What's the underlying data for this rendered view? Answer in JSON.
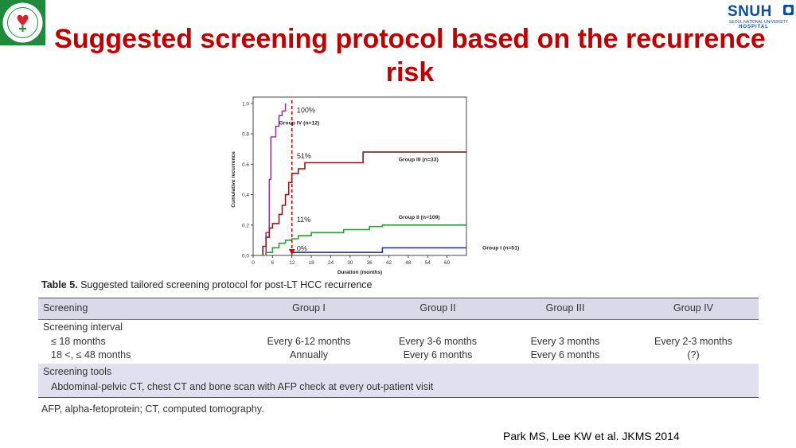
{
  "title": "Suggested screening protocol based on the recurrence risk",
  "logo_right": {
    "name": "SNUH",
    "subtitle": "SEOUL NATIONAL UNIVERSITY",
    "hospital": "HOSPITAL"
  },
  "chart_data": {
    "type": "line",
    "xlabel": "Duration (months)",
    "ylabel": "Cumulative recurrence",
    "xlim": [
      0,
      66
    ],
    "ylim": [
      0,
      1.0
    ],
    "x_ticks": [
      "0",
      "6",
      "12",
      "18",
      "24",
      "30",
      "36",
      "42",
      "48",
      "54",
      "60"
    ],
    "y_ticks": [
      "0.0",
      "0.2",
      "0.4",
      "0.6",
      "0.8",
      "1.0"
    ],
    "cutoff_x": 12,
    "series": [
      {
        "name": "Group IV (n=12)",
        "color": "#8e3fa6",
        "points": [
          [
            4,
            0
          ],
          [
            4,
            0.15
          ],
          [
            5,
            0.15
          ],
          [
            5,
            0.5
          ],
          [
            5.5,
            0.5
          ],
          [
            5.5,
            0.78
          ],
          [
            7,
            0.78
          ],
          [
            7,
            0.85
          ],
          [
            8,
            0.85
          ],
          [
            8,
            0.92
          ],
          [
            9,
            0.92
          ],
          [
            9,
            0.95
          ],
          [
            10,
            0.95
          ],
          [
            10,
            1.0
          ]
        ]
      },
      {
        "name": "Group III (n=33)",
        "color": "#8b1a1a",
        "points": [
          [
            3,
            0
          ],
          [
            3,
            0.06
          ],
          [
            4,
            0.06
          ],
          [
            4,
            0.12
          ],
          [
            5,
            0.12
          ],
          [
            5,
            0.18
          ],
          [
            6,
            0.18
          ],
          [
            6,
            0.21
          ],
          [
            8,
            0.21
          ],
          [
            8,
            0.27
          ],
          [
            9,
            0.27
          ],
          [
            9,
            0.33
          ],
          [
            10,
            0.33
          ],
          [
            10,
            0.4
          ],
          [
            11,
            0.4
          ],
          [
            11,
            0.48
          ],
          [
            12,
            0.48
          ],
          [
            12,
            0.54
          ],
          [
            14,
            0.54
          ],
          [
            14,
            0.57
          ],
          [
            16,
            0.57
          ],
          [
            16,
            0.61
          ],
          [
            34,
            0.61
          ],
          [
            34,
            0.68
          ],
          [
            66,
            0.68
          ]
        ]
      },
      {
        "name": "Group II (n=109)",
        "color": "#2e9e3a",
        "points": [
          [
            4,
            0
          ],
          [
            4,
            0.02
          ],
          [
            6,
            0.02
          ],
          [
            6,
            0.05
          ],
          [
            8,
            0.05
          ],
          [
            8,
            0.08
          ],
          [
            10,
            0.08
          ],
          [
            10,
            0.1
          ],
          [
            12,
            0.1
          ],
          [
            12,
            0.11
          ],
          [
            14,
            0.11
          ],
          [
            14,
            0.13
          ],
          [
            18,
            0.13
          ],
          [
            18,
            0.15
          ],
          [
            28,
            0.15
          ],
          [
            28,
            0.17
          ],
          [
            36,
            0.17
          ],
          [
            36,
            0.19
          ],
          [
            40,
            0.19
          ],
          [
            40,
            0.2
          ],
          [
            66,
            0.2
          ]
        ]
      },
      {
        "name": "Group I (n=51)",
        "color": "#1f3fa0",
        "points": [
          [
            12,
            0
          ],
          [
            12,
            0.02
          ],
          [
            40,
            0.02
          ],
          [
            40,
            0.05
          ],
          [
            66,
            0.05
          ]
        ]
      }
    ],
    "annotations": [
      "100%",
      "51%",
      "11%",
      "0%"
    ]
  },
  "table": {
    "caption_bold": "Table 5.",
    "caption_rest": " Suggested tailored screening protocol for post-LT HCC recurrence",
    "headers": [
      "Screening",
      "Group I",
      "Group II",
      "Group III",
      "Group IV"
    ],
    "interval_label": "Screening interval",
    "row1_label": "≤ 18 months",
    "row1": [
      "Every 6-12 months",
      "Every 3-6 months",
      "Every 3 months",
      "Every 2-3 months"
    ],
    "row2_label": "18 <,  ≤ 48 months",
    "row2": [
      "Annually",
      "Every 6 months",
      "Every 6 months",
      "(?)"
    ],
    "tools_label": "Screening tools",
    "tools_text": "Abdominal-pelvic CT, chest CT and bone scan with AFP check at every out-patient visit"
  },
  "footnote": "AFP, alpha-fetoprotein; CT, computed tomography.",
  "citation": "Park MS, Lee KW et al. JKMS 2014"
}
